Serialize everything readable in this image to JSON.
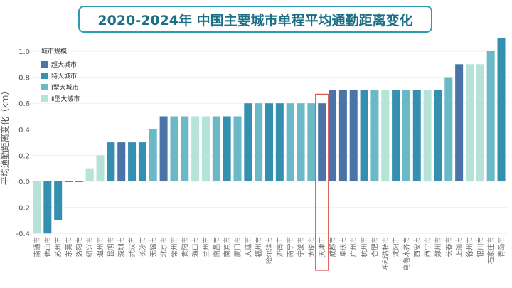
{
  "chart_data": {
    "type": "bar",
    "title": "2020-2024年 中国主要城市单程平均通勤距离变化",
    "xlabel": "",
    "ylabel": "平均通勤距离变化（km）",
    "ylim": [
      -0.4,
      1.1
    ],
    "yticks": [
      -0.4,
      -0.2,
      0.0,
      0.2,
      0.4,
      0.6,
      0.8,
      1.0
    ],
    "ytick_labels": [
      "-0.4",
      "-0.2",
      "0.0",
      "0.2",
      "0.4",
      "0.6",
      "0.8",
      "1.0"
    ],
    "grid": true,
    "legend": {
      "title": "城市规模",
      "placement": "top-left",
      "entries": [
        {
          "name": "超大城市",
          "color": "#4a74a8"
        },
        {
          "name": "特大城市",
          "color": "#3590b0"
        },
        {
          "name": "Ⅰ型大城市",
          "color": "#6bb8c6"
        },
        {
          "name": "Ⅱ型大城市",
          "color": "#b5e3d8"
        }
      ]
    },
    "highlight": "天津市",
    "categories": [
      "南通市",
      "佛山市",
      "苏州市",
      "东莞市",
      "洛阳市",
      "绍兴市",
      "温州市",
      "昆明市",
      "深圳市",
      "武汉市",
      "长沙市",
      "无锡市",
      "北京市",
      "常州市",
      "贵阳市",
      "海口市",
      "兰州市",
      "南昌市",
      "南京市",
      "厦门市",
      "大连市",
      "福州市",
      "哈尔滨市",
      "济南市",
      "南宁市",
      "宁波市",
      "太原市",
      "天津市",
      "成都市",
      "重庆市",
      "广州市",
      "杭州市",
      "合肥市",
      "呼和浩特市",
      "沈阳市",
      "乌鲁木齐市",
      "西安市",
      "西宁市",
      "郑州市",
      "长春市",
      "上海市",
      "徐州市",
      "银川市",
      "石家庄市",
      "青岛市"
    ],
    "values": [
      -0.4,
      -0.4,
      -0.3,
      0.0,
      0.0,
      0.1,
      0.2,
      0.3,
      0.3,
      0.3,
      0.3,
      0.4,
      0.5,
      0.5,
      0.5,
      0.5,
      0.5,
      0.5,
      0.5,
      0.5,
      0.6,
      0.6,
      0.6,
      0.6,
      0.6,
      0.6,
      0.6,
      0.6,
      0.7,
      0.7,
      0.7,
      0.7,
      0.7,
      0.7,
      0.7,
      0.7,
      0.7,
      0.7,
      0.7,
      0.8,
      0.9,
      0.9,
      0.9,
      1.0,
      1.1
    ],
    "groups": [
      3,
      1,
      1,
      1,
      1,
      3,
      3,
      1,
      0,
      1,
      1,
      2,
      0,
      2,
      2,
      3,
      3,
      2,
      1,
      2,
      1,
      2,
      1,
      1,
      2,
      2,
      2,
      0,
      0,
      0,
      0,
      1,
      2,
      3,
      1,
      2,
      1,
      3,
      1,
      2,
      0,
      3,
      3,
      2,
      1
    ]
  }
}
